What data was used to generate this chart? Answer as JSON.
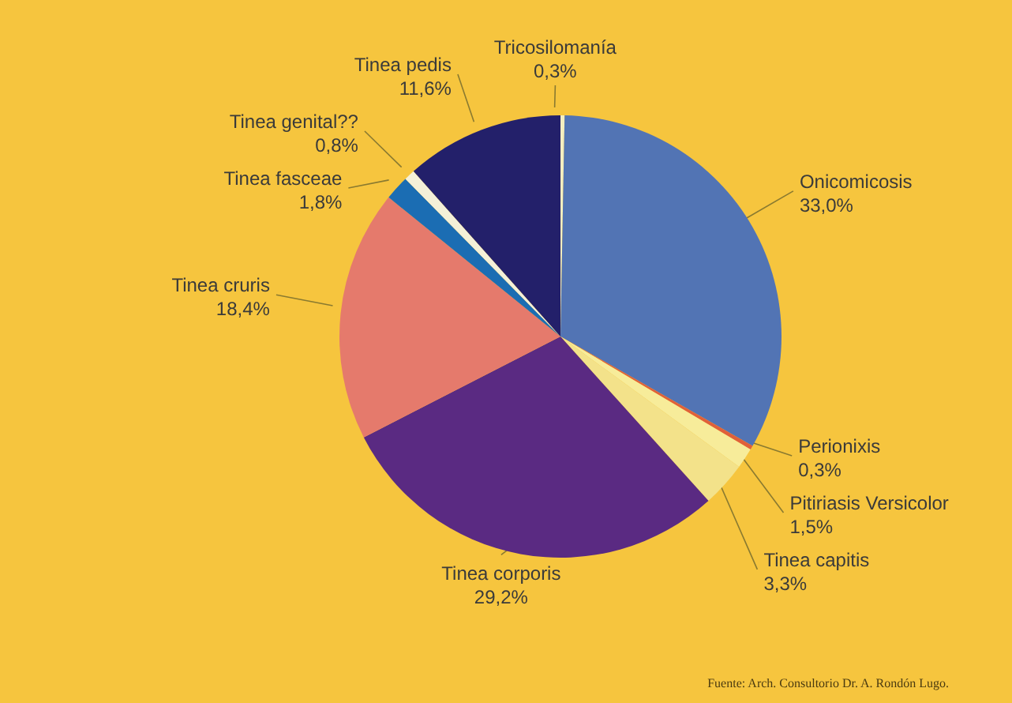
{
  "chart_data": {
    "type": "pie",
    "categories": [
      "Tricosilomanía",
      "Onicomicosis",
      "Perionixis",
      "Pitiriasis Versicolor",
      "Tinea capitis",
      "Tinea corporis",
      "Tinea cruris",
      "Tinea fasceae",
      "Tinea genital??",
      "Tinea pedis"
    ],
    "values": [
      0.3,
      33.0,
      0.3,
      1.5,
      3.3,
      29.2,
      18.4,
      1.8,
      0.8,
      11.6
    ],
    "value_labels": [
      "0,3%",
      "33,0%",
      "0,3%",
      "1,5%",
      "3,3%",
      "29,2%",
      "18,4%",
      "1,8%",
      "0,8%",
      "11,6%"
    ],
    "colors": [
      "#f3eec0",
      "#5274b4",
      "#e0603a",
      "#f7ec9a",
      "#f3e28a",
      "#5a2a82",
      "#e57a6c",
      "#1b6db3",
      "#f4f0d8",
      "#23206a"
    ],
    "annotations": [
      "Fuente: Arch. Consultorio Dr. A. Rondón Lugo."
    ]
  }
}
